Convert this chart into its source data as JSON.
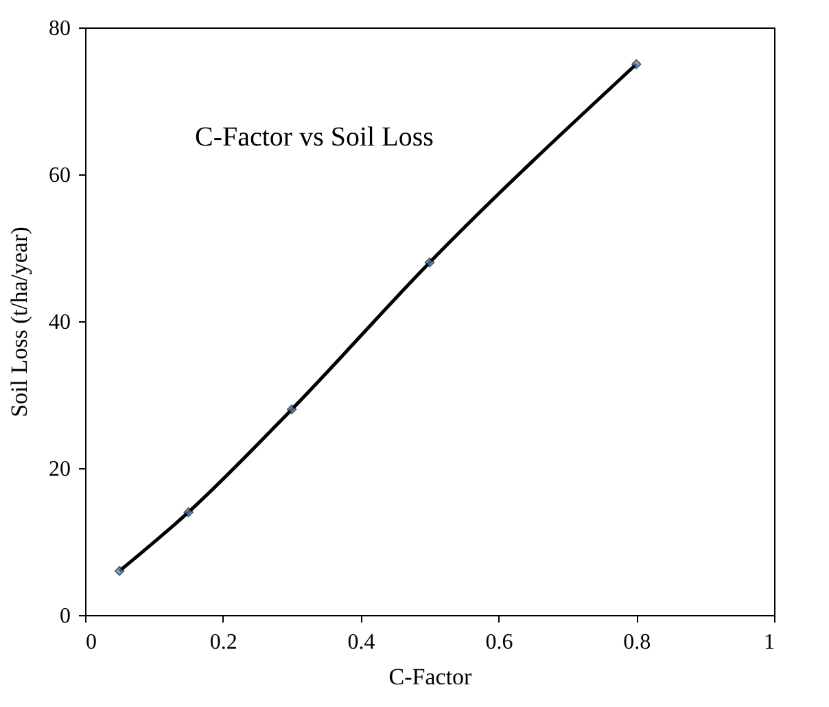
{
  "chart_data": {
    "type": "line",
    "title": "C-Factor vs Soil Loss",
    "xlabel": "C-Factor",
    "ylabel": "Soil Loss (t/ha/year)",
    "x": [
      0.05,
      0.15,
      0.3,
      0.5,
      0.8
    ],
    "series": [
      {
        "color": "#000000",
        "values": [
          6,
          14,
          28,
          48,
          75
        ]
      }
    ],
    "xlim": [
      0,
      1
    ],
    "xticks": [
      0,
      0.2,
      0.4,
      0.6,
      0.8,
      1
    ],
    "ylim": [
      0,
      80
    ],
    "yticks": [
      0,
      20,
      40,
      60,
      80
    ],
    "grid": false,
    "marker": "diamond",
    "line_style": "solid"
  }
}
